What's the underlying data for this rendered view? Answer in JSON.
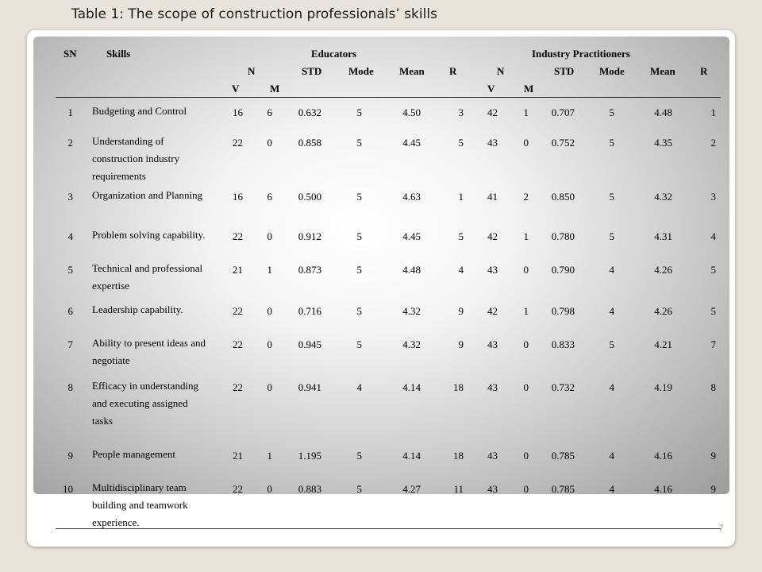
{
  "title": "Table 1: The scope of construction professionals’ skills",
  "page_number": "7",
  "header": {
    "sn": "SN",
    "skills": "Skills",
    "group1": "Educators",
    "group2": "Industry Practitioners",
    "n": "N",
    "v": "V",
    "m": "M",
    "std": "STD",
    "mode": "Mode",
    "mean": "Mean",
    "r": "R"
  },
  "rows": [
    {
      "sn": "1",
      "skill": "Budgeting and Control",
      "e_nv": "16",
      "e_nm": "6",
      "e_std": "0.632",
      "e_mode": "5",
      "e_mean": "4.50",
      "e_r": "3",
      "i_nv": "42",
      "i_nm": "1",
      "i_std": "0.707",
      "i_mode": "5",
      "i_mean": "4.48",
      "i_r": "1"
    },
    {
      "sn": "2",
      "skill": "Understanding of construction industry requirements",
      "e_nv": "22",
      "e_nm": "0",
      "e_std": "0.858",
      "e_mode": "5",
      "e_mean": "4.45",
      "e_r": "5",
      "i_nv": "43",
      "i_nm": "0",
      "i_std": "0.752",
      "i_mode": "5",
      "i_mean": "4.35",
      "i_r": "2"
    },
    {
      "sn": "3",
      "skill": "Organization and Planning",
      "e_nv": "16",
      "e_nm": "6",
      "e_std": "0.500",
      "e_mode": "5",
      "e_mean": "4.63",
      "e_r": "1",
      "i_nv": "41",
      "i_nm": "2",
      "i_std": "0.850",
      "i_mode": "5",
      "i_mean": "4.32",
      "i_r": "3"
    },
    {
      "sn": "4",
      "skill": "Problem solving capability.",
      "e_nv": "22",
      "e_nm": "0",
      "e_std": "0.912",
      "e_mode": "5",
      "e_mean": "4.45",
      "e_r": "5",
      "i_nv": "42",
      "i_nm": "1",
      "i_std": "0.780",
      "i_mode": "5",
      "i_mean": "4.31",
      "i_r": "4"
    },
    {
      "sn": "5",
      "skill": "Technical and professional expertise",
      "e_nv": "21",
      "e_nm": "1",
      "e_std": "0.873",
      "e_mode": "5",
      "e_mean": "4.48",
      "e_r": "4",
      "i_nv": "43",
      "i_nm": "0",
      "i_std": "0.790",
      "i_mode": "4",
      "i_mean": "4.26",
      "i_r": "5"
    },
    {
      "sn": "6",
      "skill": "Leadership capability.",
      "e_nv": "22",
      "e_nm": "0",
      "e_std": "0.716",
      "e_mode": "5",
      "e_mean": "4.32",
      "e_r": "9",
      "i_nv": "42",
      "i_nm": "1",
      "i_std": "0.798",
      "i_mode": "4",
      "i_mean": "4.26",
      "i_r": "5"
    },
    {
      "sn": "7",
      "skill": "Ability to present ideas and negotiate",
      "e_nv": "22",
      "e_nm": "0",
      "e_std": "0.945",
      "e_mode": "5",
      "e_mean": "4.32",
      "e_r": "9",
      "i_nv": "43",
      "i_nm": "0",
      "i_std": "0.833",
      "i_mode": "5",
      "i_mean": "4.21",
      "i_r": "7"
    },
    {
      "sn": "8",
      "skill": "Efficacy in understanding and executing assigned tasks",
      "e_nv": "22",
      "e_nm": "0",
      "e_std": "0.941",
      "e_mode": "4",
      "e_mean": "4.14",
      "e_r": "18",
      "i_nv": "43",
      "i_nm": "0",
      "i_std": "0.732",
      "i_mode": "4",
      "i_mean": "4.19",
      "i_r": "8"
    },
    {
      "sn": "9",
      "skill": "People management",
      "e_nv": "21",
      "e_nm": "1",
      "e_std": "1.195",
      "e_mode": "5",
      "e_mean": "4.14",
      "e_r": "18",
      "i_nv": "43",
      "i_nm": "0",
      "i_std": "0.785",
      "i_mode": "4",
      "i_mean": "4.16",
      "i_r": "9"
    },
    {
      "sn": "10",
      "skill": "Multidisciplinary team building and teamwork experience.",
      "e_nv": "22",
      "e_nm": "0",
      "e_std": "0.883",
      "e_mode": "5",
      "e_mean": "4.27",
      "e_r": "11",
      "i_nv": "43",
      "i_nm": "0",
      "i_std": "0.785",
      "i_mode": "4",
      "i_mean": "4.16",
      "i_r": "9"
    }
  ]
}
